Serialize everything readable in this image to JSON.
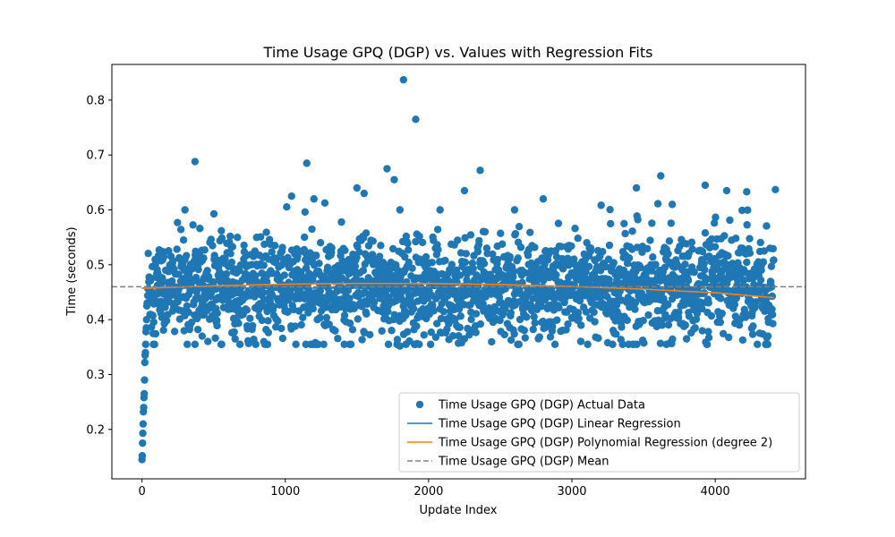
{
  "chart_data": {
    "type": "scatter",
    "title": "Time Usage GPQ (DGP) vs. Values with Regression Fits",
    "xlabel": "Update Index",
    "ylabel": "Time (seconds)",
    "xlim": [
      -210,
      4630
    ],
    "ylim": [
      0.11,
      0.865
    ],
    "xticks": [
      0,
      1000,
      2000,
      3000,
      4000
    ],
    "yticks": [
      0.2,
      0.3,
      0.4,
      0.5,
      0.6,
      0.7,
      0.8
    ],
    "grid": false,
    "legend_position": "lower-right",
    "colors": {
      "scatter": "#1f77b4",
      "linear": "#1f77b4",
      "poly": "#ff7f0e",
      "mean": "#808080"
    },
    "series": [
      {
        "name": "Time Usage GPQ (DGP) Actual Data",
        "kind": "scatter",
        "n_points": 4410,
        "center": 0.458,
        "spread": 0.045,
        "outliers": [
          [
            0,
            0.145
          ],
          [
            2,
            0.152
          ],
          [
            4,
            0.175
          ],
          [
            6,
            0.193
          ],
          [
            8,
            0.21
          ],
          [
            10,
            0.232
          ],
          [
            12,
            0.24
          ],
          [
            14,
            0.258
          ],
          [
            16,
            0.265
          ],
          [
            18,
            0.29
          ],
          [
            20,
            0.322
          ],
          [
            22,
            0.335
          ],
          [
            24,
            0.34
          ],
          [
            26,
            0.355
          ],
          [
            28,
            0.378
          ],
          [
            30,
            0.385
          ],
          [
            32,
            0.4
          ],
          [
            34,
            0.425
          ],
          [
            36,
            0.43
          ],
          [
            1825,
            0.837
          ],
          [
            1910,
            0.765
          ],
          [
            370,
            0.688
          ],
          [
            1150,
            0.685
          ],
          [
            2360,
            0.672
          ],
          [
            1710,
            0.675
          ],
          [
            1760,
            0.655
          ],
          [
            3620,
            0.662
          ],
          [
            1500,
            0.64
          ],
          [
            3450,
            0.64
          ],
          [
            3930,
            0.645
          ],
          [
            4420,
            0.637
          ],
          [
            4080,
            0.635
          ],
          [
            4220,
            0.633
          ],
          [
            2250,
            0.635
          ],
          [
            300,
            0.6
          ],
          [
            1200,
            0.62
          ],
          [
            1550,
            0.63
          ],
          [
            2800,
            0.62
          ],
          [
            1720,
            0.355
          ],
          [
            1800,
            0.352
          ],
          [
            2250,
            0.365
          ],
          [
            3250,
            0.358
          ],
          [
            3430,
            0.355
          ],
          [
            3660,
            0.355
          ],
          [
            3800,
            0.365
          ],
          [
            650,
            0.365
          ],
          [
            850,
            0.36
          ],
          [
            420,
            0.37
          ],
          [
            1800,
            0.6
          ],
          [
            2080,
            0.6
          ],
          [
            2600,
            0.6
          ],
          [
            3700,
            0.61
          ]
        ]
      },
      {
        "name": "Time Usage GPQ (DGP) Linear Regression",
        "kind": "line",
        "x": [
          0,
          4410
        ],
        "values": [
          0.4575,
          0.4575
        ]
      },
      {
        "name": "Time Usage GPQ (DGP) Polynomial Regression (degree 2)",
        "kind": "line",
        "x": [
          0,
          500,
          1000,
          1500,
          2000,
          2500,
          3000,
          3500,
          4000,
          4410
        ],
        "values": [
          0.457,
          0.4615,
          0.4645,
          0.466,
          0.4658,
          0.464,
          0.4605,
          0.4555,
          0.449,
          0.44
        ]
      },
      {
        "name": "Time Usage GPQ (DGP) Mean",
        "kind": "hline",
        "values": [
          0.46
        ]
      }
    ]
  }
}
